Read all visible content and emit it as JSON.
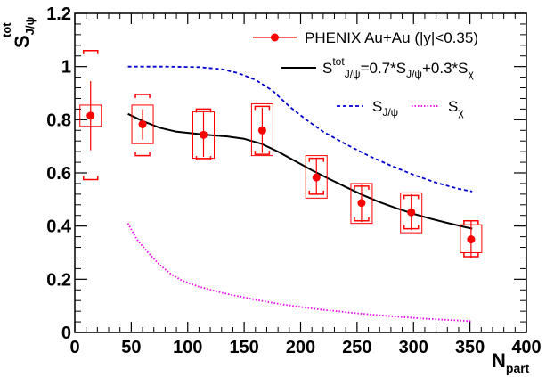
{
  "chart_data": {
    "type": "line",
    "xlabel": {
      "main": "N",
      "sub": "part"
    },
    "ylabel": {
      "main": "S",
      "sup": "tot",
      "sub": "J/ψ"
    },
    "xlim": [
      0,
      400
    ],
    "ylim": [
      0,
      1.2
    ],
    "x_ticks": [
      0,
      50,
      100,
      150,
      200,
      250,
      300,
      350,
      400
    ],
    "y_ticks": [
      0,
      0.2,
      0.4,
      0.6,
      0.8,
      1,
      1.2
    ],
    "x_tick_labels": [
      "0",
      "50",
      "100",
      "150",
      "200",
      "250",
      "300",
      "350",
      "400"
    ],
    "y_tick_labels": [
      "0",
      "0.2",
      "0.4",
      "0.6",
      "0.8",
      "1",
      "1.2"
    ],
    "grid": false,
    "legend_position": "top-right",
    "series": [
      {
        "name": "PHENIX Au+Au (|y|<0.35)",
        "style": "points",
        "color": "#ff0000",
        "points": [
          {
            "x": 14,
            "y": 0.815,
            "stat_lo": 0.685,
            "stat_hi": 0.945,
            "box_lo": 0.775,
            "box_hi": 0.855,
            "syst_lo": 0.575,
            "syst_hi": 1.06
          },
          {
            "x": 60,
            "y": 0.783,
            "stat_lo": 0.725,
            "stat_hi": 0.84,
            "box_lo": 0.71,
            "box_hi": 0.855,
            "syst_lo": 0.665,
            "syst_hi": 0.895
          },
          {
            "x": 114,
            "y": 0.743,
            "stat_lo": 0.66,
            "stat_hi": 0.83,
            "box_lo": 0.655,
            "box_hi": 0.83,
            "syst_lo": 0.65,
            "syst_hi": 0.84
          },
          {
            "x": 166,
            "y": 0.76,
            "stat_lo": 0.675,
            "stat_hi": 0.845,
            "box_lo": 0.665,
            "box_hi": 0.86,
            "syst_lo": 0.67,
            "syst_hi": 0.85
          },
          {
            "x": 214,
            "y": 0.583,
            "stat_lo": 0.52,
            "stat_hi": 0.655,
            "box_lo": 0.505,
            "box_hi": 0.665,
            "syst_lo": 0.52,
            "syst_hi": 0.655
          },
          {
            "x": 254,
            "y": 0.487,
            "stat_lo": 0.415,
            "stat_hi": 0.555,
            "box_lo": 0.41,
            "box_hi": 0.56,
            "syst_lo": 0.42,
            "syst_hi": 0.55
          },
          {
            "x": 298,
            "y": 0.452,
            "stat_lo": 0.385,
            "stat_hi": 0.52,
            "box_lo": 0.375,
            "box_hi": 0.525,
            "syst_lo": 0.39,
            "syst_hi": 0.515
          },
          {
            "x": 351,
            "y": 0.35,
            "stat_lo": 0.28,
            "stat_hi": 0.42,
            "box_lo": 0.3,
            "box_hi": 0.405,
            "syst_lo": 0.285,
            "syst_hi": 0.42
          }
        ]
      },
      {
        "name": "S_tot = 0.7*S_J/ψ + 0.3*S_χ",
        "style": "solid",
        "color": "#000000",
        "x": [
          47,
          60,
          75,
          90,
          105,
          120,
          135,
          150,
          165,
          180,
          195,
          210,
          225,
          240,
          255,
          270,
          285,
          300,
          315,
          330,
          345,
          352
        ],
        "y": [
          0.822,
          0.795,
          0.77,
          0.755,
          0.748,
          0.742,
          0.737,
          0.728,
          0.71,
          0.68,
          0.645,
          0.61,
          0.578,
          0.547,
          0.517,
          0.49,
          0.467,
          0.446,
          0.428,
          0.412,
          0.397,
          0.39
        ]
      },
      {
        "name": "S_J/ψ",
        "style": "dashed",
        "color": "#0000cc",
        "x": [
          47,
          80,
          110,
          130,
          145,
          160,
          175,
          190,
          205,
          220,
          240,
          260,
          280,
          300,
          320,
          340,
          352
        ],
        "y": [
          1.0,
          1.0,
          0.998,
          0.99,
          0.975,
          0.95,
          0.91,
          0.85,
          0.8,
          0.755,
          0.708,
          0.665,
          0.627,
          0.593,
          0.563,
          0.54,
          0.53
        ]
      },
      {
        "name": "S_χ",
        "style": "dotted",
        "color": "#ee00ee",
        "x": [
          47,
          55,
          65,
          75,
          85,
          95,
          110,
          125,
          140,
          160,
          180,
          200,
          220,
          250,
          280,
          310,
          340,
          352
        ],
        "y": [
          0.41,
          0.35,
          0.3,
          0.255,
          0.22,
          0.195,
          0.172,
          0.155,
          0.14,
          0.123,
          0.108,
          0.096,
          0.085,
          0.072,
          0.061,
          0.052,
          0.045,
          0.042
        ]
      }
    ],
    "legend": [
      {
        "kind": "points",
        "parts": [
          {
            "t": "PHENIX Au+Au (|y|<0.35)"
          }
        ]
      },
      {
        "kind": "solid",
        "parts": [
          {
            "t": "S"
          },
          {
            "t": "tot",
            "sup": true
          },
          {
            "t": "J/ψ",
            "sub": true
          },
          {
            "t": "=0.7*S"
          },
          {
            "t": "J/ψ",
            "sub": true
          },
          {
            "t": "+0.3*S"
          },
          {
            "t": "χ",
            "sub": true
          }
        ]
      },
      {
        "kind": "dashed",
        "parts": [
          {
            "t": "S"
          },
          {
            "t": "J/ψ",
            "sub": true
          }
        ]
      },
      {
        "kind": "dotted",
        "parts": [
          {
            "t": "S"
          },
          {
            "t": "χ",
            "sub": true
          }
        ]
      }
    ]
  }
}
